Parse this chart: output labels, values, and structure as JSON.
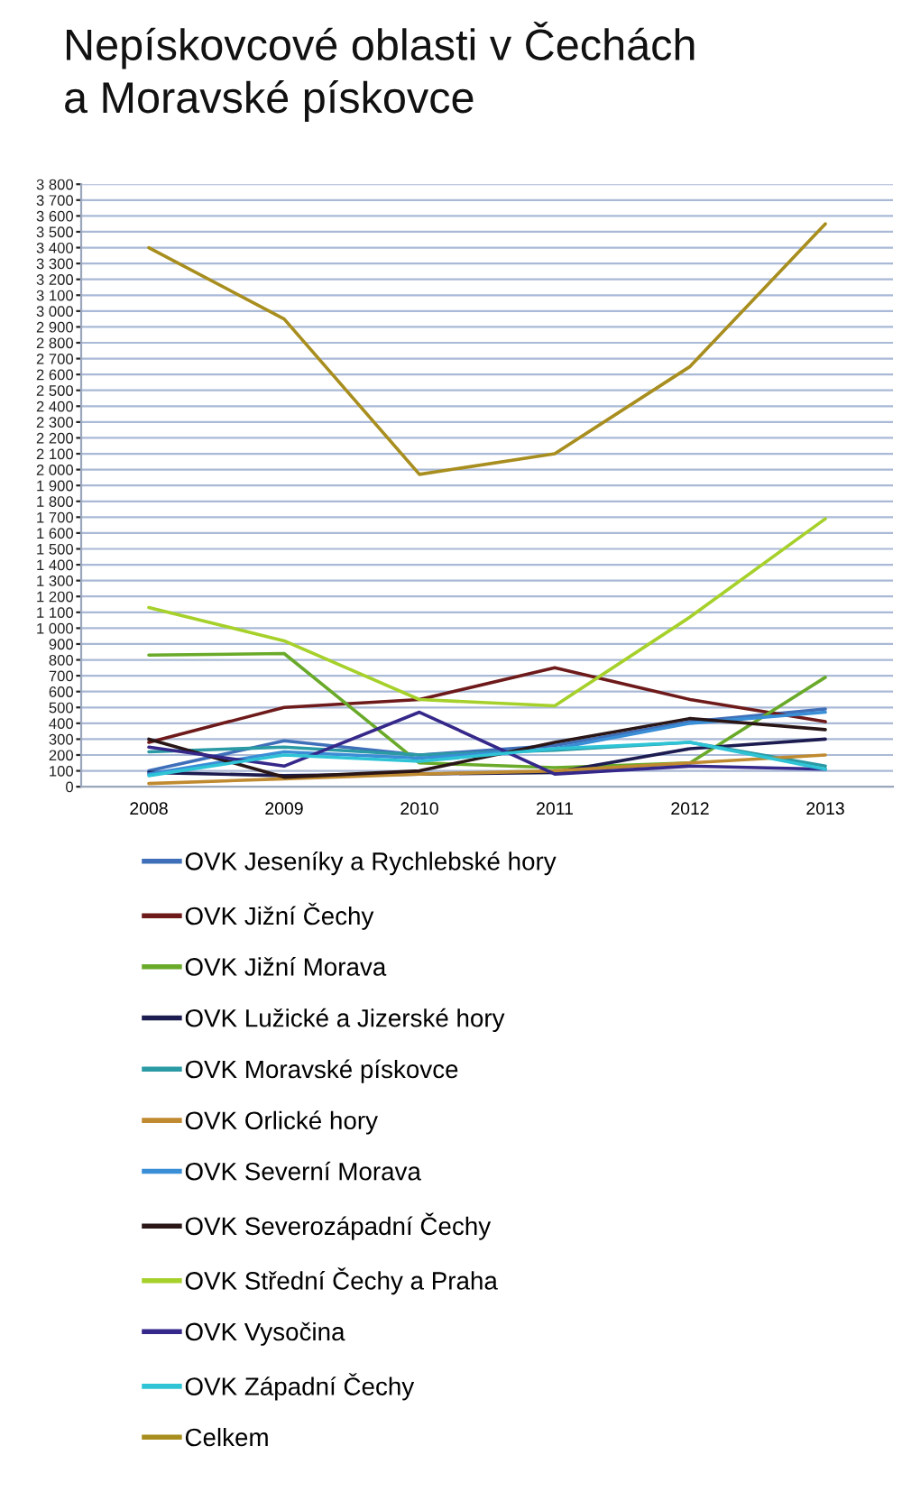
{
  "chart_data": {
    "type": "line",
    "title": "Nepískovcové oblasti v Čechách\na Moravské pískovce",
    "categories": [
      "2008",
      "2009",
      "2010",
      "2011",
      "2012",
      "2013"
    ],
    "ylim": [
      0,
      3800
    ],
    "yticks": [
      0,
      100,
      200,
      300,
      400,
      500,
      600,
      700,
      800,
      900,
      {
        "value": 1000,
        "label": "1 000"
      },
      {
        "value": 1100,
        "label": "1 100"
      },
      {
        "value": 1200,
        "label": "1 200"
      },
      {
        "value": 1300,
        "label": "1 300"
      },
      {
        "value": 1400,
        "label": "1 400"
      },
      {
        "value": 1500,
        "label": "1 500"
      },
      {
        "value": 1600,
        "label": "1 600"
      },
      {
        "value": 1700,
        "label": "1 700"
      },
      {
        "value": 1800,
        "label": "1 800"
      },
      {
        "value": 1900,
        "label": "1 900"
      },
      {
        "value": 2000,
        "label": "2 000"
      },
      {
        "value": 2100,
        "label": "2 100"
      },
      {
        "value": 2200,
        "label": "2 200"
      },
      {
        "value": 2300,
        "label": "2 300"
      },
      {
        "value": 2400,
        "label": "2 400"
      },
      {
        "value": 2500,
        "label": "2 500"
      },
      {
        "value": 2600,
        "label": "2 600"
      },
      {
        "value": 2700,
        "label": "2 700"
      },
      {
        "value": 2800,
        "label": "2 800"
      },
      {
        "value": 2900,
        "label": "2 900"
      },
      {
        "value": 3000,
        "label": "3 000"
      },
      {
        "value": 3100,
        "label": "3 100"
      },
      {
        "value": 3200,
        "label": "3 200"
      },
      {
        "value": 3300,
        "label": "3 300"
      },
      {
        "value": 3400,
        "label": "3 400"
      },
      {
        "value": 3500,
        "label": "3 500"
      },
      {
        "value": 3600,
        "label": "3 600"
      },
      {
        "value": 3700,
        "label": "3 700"
      },
      {
        "value": 3800,
        "label": "3 800"
      }
    ],
    "grid": "y",
    "legend": "bottom",
    "series": [
      {
        "name": "OVK Jeseníky a Rychlebské hory",
        "color": "#3f6fb8",
        "values": [
          100,
          290,
          200,
          260,
          410,
          490
        ]
      },
      {
        "name": "OVK Jižní Čechy",
        "color": "#6e1a1a",
        "values": [
          280,
          500,
          550,
          750,
          550,
          410
        ]
      },
      {
        "name": "OVK Jižní Morava",
        "color": "#6aaa2a",
        "values": [
          830,
          840,
          150,
          120,
          150,
          690
        ]
      },
      {
        "name": "OVK Lužické a Jizerské hory",
        "color": "#1c1c50",
        "values": [
          90,
          70,
          80,
          90,
          240,
          300
        ]
      },
      {
        "name": "OVK Moravské pískovce",
        "color": "#2a9aa4",
        "values": [
          220,
          250,
          200,
          230,
          280,
          130
        ]
      },
      {
        "name": "OVK Orlické hory",
        "color": "#c08a30",
        "values": [
          20,
          50,
          80,
          100,
          150,
          200
        ]
      },
      {
        "name": "OVK Severní Morava",
        "color": "#3a8ed6",
        "values": [
          80,
          220,
          180,
          240,
          400,
          470
        ]
      },
      {
        "name": "OVK Severozápadní Čechy",
        "color": "#2a1616",
        "values": [
          300,
          60,
          100,
          280,
          430,
          360
        ]
      },
      {
        "name": "OVK Střední Čechy a Praha",
        "color": "#a6d02a",
        "values": [
          1130,
          920,
          550,
          510,
          1070,
          1690
        ]
      },
      {
        "name": "OVK Vysočina",
        "color": "#35288a",
        "values": [
          250,
          130,
          470,
          80,
          130,
          110
        ]
      },
      {
        "name": "OVK Západní Čechy",
        "color": "#2ec4d6",
        "values": [
          70,
          200,
          160,
          240,
          280,
          110
        ]
      },
      {
        "name": "Celkem",
        "color": "#a88e1e",
        "values": [
          3400,
          2950,
          1970,
          2100,
          2650,
          3550
        ]
      }
    ]
  }
}
